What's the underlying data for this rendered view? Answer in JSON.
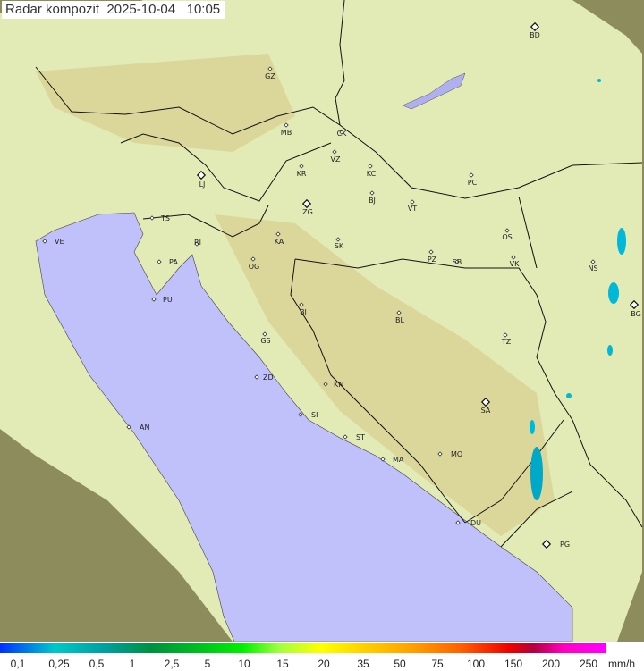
{
  "title": "Radar kompozit  2025-10-04   10:05",
  "legend": {
    "unit": "mm/h",
    "ticks": [
      "0,1",
      "0,25",
      "0,5",
      "1",
      "2,5",
      "5",
      "10",
      "15",
      "20",
      "35",
      "50",
      "75",
      "100",
      "150",
      "200",
      "250"
    ]
  },
  "colors": {
    "sea": "#c0c0fa",
    "coverage": "#e4ecb8",
    "outside": "#8a8a58",
    "border": "#111111",
    "rain": "#00b8d8"
  },
  "cities": [
    {
      "code": "BD",
      "type": "diamond"
    },
    {
      "code": "GZ",
      "type": "dot"
    },
    {
      "code": "MB",
      "type": "dot"
    },
    {
      "code": "CK",
      "type": "dot"
    },
    {
      "code": "VZ",
      "type": "dot"
    },
    {
      "code": "KR",
      "type": "dot"
    },
    {
      "code": "KC",
      "type": "dot"
    },
    {
      "code": "PC",
      "type": "dot"
    },
    {
      "code": "LJ",
      "type": "diamond"
    },
    {
      "code": "BJ",
      "type": "dot"
    },
    {
      "code": "VT",
      "type": "dot"
    },
    {
      "code": "ZG",
      "type": "diamond"
    },
    {
      "code": "TS",
      "type": "dot"
    },
    {
      "code": "VE",
      "type": "dot"
    },
    {
      "code": "KA",
      "type": "dot"
    },
    {
      "code": "SK",
      "type": "dot"
    },
    {
      "code": "OS",
      "type": "dot"
    },
    {
      "code": "RI",
      "type": "dot"
    },
    {
      "code": "PA",
      "type": "dot"
    },
    {
      "code": "OG",
      "type": "dot"
    },
    {
      "code": "PZ",
      "type": "dot"
    },
    {
      "code": "SB",
      "type": "dot"
    },
    {
      "code": "VK",
      "type": "dot"
    },
    {
      "code": "NS",
      "type": "dot"
    },
    {
      "code": "PU",
      "type": "dot"
    },
    {
      "code": "BI",
      "type": "dot"
    },
    {
      "code": "BG",
      "type": "diamond"
    },
    {
      "code": "BL",
      "type": "dot"
    },
    {
      "code": "TZ",
      "type": "dot"
    },
    {
      "code": "GS",
      "type": "dot"
    },
    {
      "code": "ZD",
      "type": "dot"
    },
    {
      "code": "KN",
      "type": "dot"
    },
    {
      "code": "SA",
      "type": "diamond"
    },
    {
      "code": "SI",
      "type": "dot"
    },
    {
      "code": "AN",
      "type": "dot"
    },
    {
      "code": "ST",
      "type": "dot"
    },
    {
      "code": "MO",
      "type": "dot"
    },
    {
      "code": "MA",
      "type": "dot"
    },
    {
      "code": "DU",
      "type": "dot"
    },
    {
      "code": "PG",
      "type": "diamond"
    }
  ]
}
